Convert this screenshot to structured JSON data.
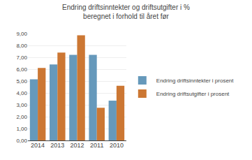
{
  "chart_data": {
    "type": "bar",
    "title": "Endring driftsinntekter og driftsutgifter i %\nberegnet i forhold til året før",
    "categories": [
      "2014",
      "2013",
      "2012",
      "2011",
      "2010"
    ],
    "series": [
      {
        "name": "Endring driftsinntekter i prosent",
        "color": "#6699bb",
        "values": [
          5.15,
          6.4,
          7.2,
          7.2,
          3.35
        ]
      },
      {
        "name": "Endring driftsutgifter i prosent",
        "color": "#cc7733",
        "values": [
          6.1,
          7.4,
          8.85,
          2.75,
          4.6
        ]
      }
    ],
    "ylim": [
      0,
      9.0
    ],
    "yticks": [
      {
        "value": 0,
        "label": "0,00"
      },
      {
        "value": 1,
        "label": "1,00"
      },
      {
        "value": 2,
        "label": "2,00"
      },
      {
        "value": 3,
        "label": "3,00"
      },
      {
        "value": 4,
        "label": "4,00"
      },
      {
        "value": 5,
        "label": "5,00"
      },
      {
        "value": 6,
        "label": "6,00"
      },
      {
        "value": 7,
        "label": "7,00"
      },
      {
        "value": 8,
        "label": "8,00"
      },
      {
        "value": 9,
        "label": "9,00"
      }
    ],
    "grid": true,
    "legend": "right"
  }
}
